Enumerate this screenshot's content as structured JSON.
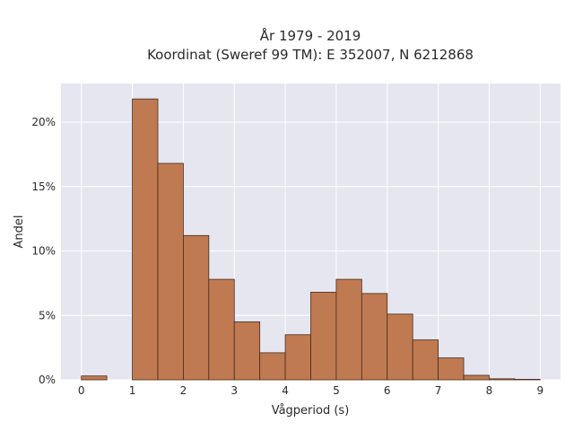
{
  "chart_data": {
    "type": "bar",
    "title": [
      "År 1979 - 2019",
      "Koordinat (Sweref 99 TM): E 352007, N 6212868"
    ],
    "xlabel": "Vågperiod (s)",
    "ylabel": "Andel",
    "x_ticks": [
      "0",
      "1",
      "2",
      "3",
      "4",
      "5",
      "6",
      "7",
      "8",
      "9"
    ],
    "y_ticks": [
      "0%",
      "5%",
      "10%",
      "15%",
      "20%"
    ],
    "xlim": [
      -0.4,
      9.4
    ],
    "ylim": [
      0,
      23.0
    ],
    "bin_width": 0.5,
    "bins": [
      {
        "x0": 0.0,
        "value": 0.3
      },
      {
        "x0": 0.5,
        "value": 0.0
      },
      {
        "x0": 1.0,
        "value": 21.8
      },
      {
        "x0": 1.5,
        "value": 16.8
      },
      {
        "x0": 2.0,
        "value": 11.2
      },
      {
        "x0": 2.5,
        "value": 7.8
      },
      {
        "x0": 3.0,
        "value": 4.5
      },
      {
        "x0": 3.5,
        "value": 2.1
      },
      {
        "x0": 4.0,
        "value": 3.5
      },
      {
        "x0": 4.5,
        "value": 6.8
      },
      {
        "x0": 5.0,
        "value": 7.8
      },
      {
        "x0": 5.5,
        "value": 6.7
      },
      {
        "x0": 6.0,
        "value": 5.1
      },
      {
        "x0": 6.5,
        "value": 3.1
      },
      {
        "x0": 7.0,
        "value": 1.7
      },
      {
        "x0": 7.5,
        "value": 0.35
      },
      {
        "x0": 8.0,
        "value": 0.08
      },
      {
        "x0": 8.5,
        "value": 0.04
      }
    ],
    "colors": {
      "bar_fill": "#bf7a52",
      "bar_edge": "#4a2a18",
      "plot_bg": "#e5e6f0",
      "grid": "#ffffff"
    },
    "grid": true
  }
}
